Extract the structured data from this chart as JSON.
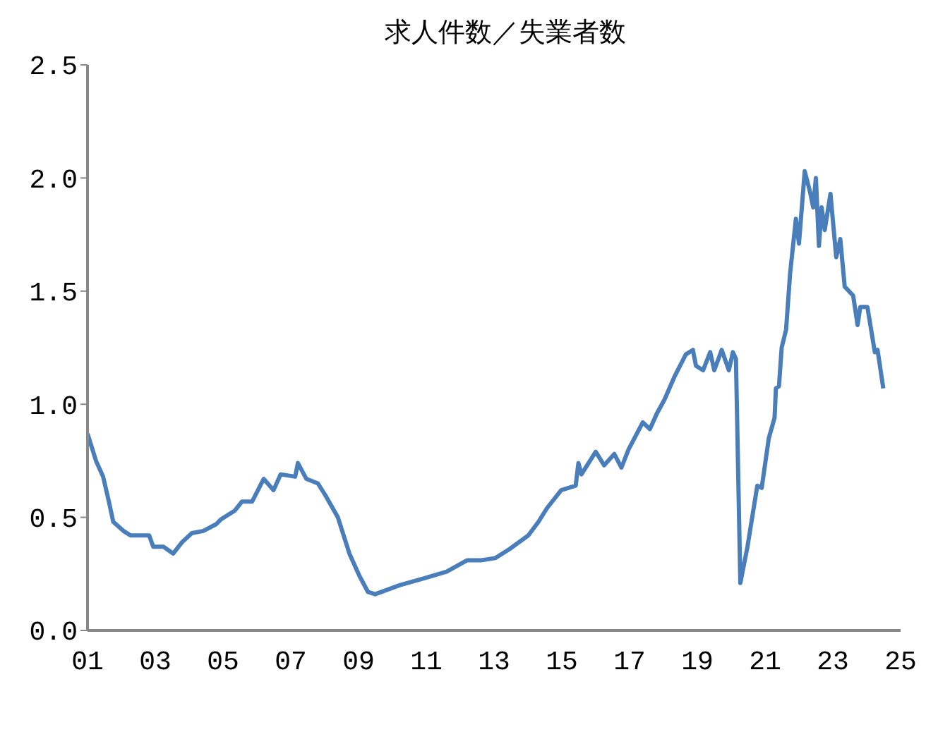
{
  "chart_data": {
    "type": "line",
    "title": "求人件数／失業者数",
    "x": [
      2001.0,
      2001.25,
      2001.46,
      2001.63,
      2001.76,
      2002.06,
      2002.27,
      2002.6,
      2002.82,
      2002.94,
      2003.24,
      2003.53,
      2003.79,
      2004.08,
      2004.42,
      2004.8,
      2004.93,
      2005.35,
      2005.56,
      2005.86,
      2006.2,
      2006.49,
      2006.7,
      2007.13,
      2007.21,
      2007.46,
      2007.8,
      2008.01,
      2008.39,
      2008.73,
      2009.03,
      2009.28,
      2009.49,
      2010.21,
      2010.93,
      2011.6,
      2012.2,
      2012.62,
      2013.04,
      2013.46,
      2014.01,
      2014.31,
      2014.56,
      2014.98,
      2015.41,
      2015.49,
      2015.58,
      2016.0,
      2016.25,
      2016.55,
      2016.76,
      2016.97,
      2017.39,
      2017.6,
      2017.81,
      2018.03,
      2018.32,
      2018.66,
      2018.87,
      2018.96,
      2019.17,
      2019.38,
      2019.5,
      2019.72,
      2019.93,
      2020.05,
      2020.14,
      2020.27,
      2020.48,
      2020.77,
      2020.9,
      2021.11,
      2021.28,
      2021.32,
      2021.41,
      2021.49,
      2021.62,
      2021.74,
      2021.91,
      2022.0,
      2022.17,
      2022.34,
      2022.42,
      2022.5,
      2022.59,
      2022.67,
      2022.76,
      2022.93,
      2023.1,
      2023.22,
      2023.35,
      2023.6,
      2023.73,
      2023.81,
      2024.02,
      2024.24,
      2024.32,
      2024.49
    ],
    "series": [
      {
        "color": "#4a7ebb",
        "values": [
          0.87,
          0.75,
          0.68,
          0.57,
          0.48,
          0.44,
          0.42,
          0.42,
          0.42,
          0.37,
          0.37,
          0.34,
          0.39,
          0.43,
          0.44,
          0.47,
          0.49,
          0.53,
          0.57,
          0.57,
          0.67,
          0.62,
          0.69,
          0.68,
          0.74,
          0.67,
          0.65,
          0.6,
          0.5,
          0.34,
          0.24,
          0.17,
          0.16,
          0.2,
          0.23,
          0.26,
          0.31,
          0.31,
          0.32,
          0.36,
          0.42,
          0.48,
          0.54,
          0.62,
          0.64,
          0.74,
          0.69,
          0.79,
          0.73,
          0.78,
          0.72,
          0.8,
          0.92,
          0.89,
          0.96,
          1.02,
          1.12,
          1.22,
          1.24,
          1.17,
          1.15,
          1.23,
          1.15,
          1.24,
          1.15,
          1.23,
          1.2,
          0.21,
          0.37,
          0.64,
          0.63,
          0.85,
          0.94,
          1.07,
          1.08,
          1.25,
          1.33,
          1.58,
          1.82,
          1.71,
          2.03,
          1.93,
          1.87,
          2.0,
          1.7,
          1.87,
          1.77,
          1.93,
          1.65,
          1.73,
          1.52,
          1.48,
          1.35,
          1.43,
          1.43,
          1.23,
          1.24,
          1.07
        ]
      }
    ],
    "xlim": [
      2001,
      2025
    ],
    "xticks": [
      {
        "value": 2001,
        "label": "01"
      },
      {
        "value": 2003,
        "label": "03"
      },
      {
        "value": 2005,
        "label": "05"
      },
      {
        "value": 2007,
        "label": "07"
      },
      {
        "value": 2009,
        "label": "09"
      },
      {
        "value": 2011,
        "label": "11"
      },
      {
        "value": 2013,
        "label": "13"
      },
      {
        "value": 2015,
        "label": "15"
      },
      {
        "value": 2017,
        "label": "17"
      },
      {
        "value": 2019,
        "label": "19"
      },
      {
        "value": 2021,
        "label": "21"
      },
      {
        "value": 2023,
        "label": "23"
      },
      {
        "value": 2025,
        "label": "25"
      }
    ],
    "ylim": [
      0,
      2.5
    ],
    "yticks": [
      {
        "value": 0,
        "label": "0.0"
      },
      {
        "value": 0.5,
        "label": "0.5"
      },
      {
        "value": 1,
        "label": "1.0"
      },
      {
        "value": 1.5,
        "label": "1.5"
      },
      {
        "value": 2,
        "label": "2.0"
      },
      {
        "value": 2.5,
        "label": "2.5"
      }
    ],
    "grid": false,
    "legend": false,
    "marker": "none",
    "line_style": "solid"
  }
}
